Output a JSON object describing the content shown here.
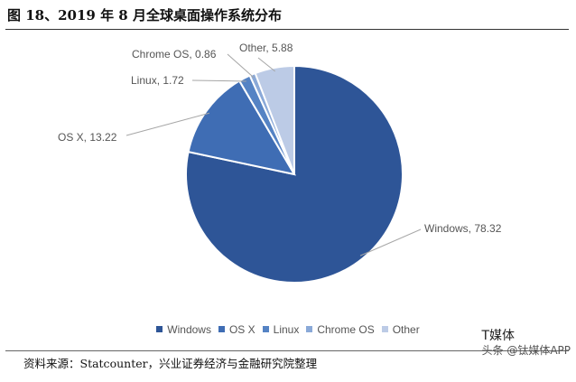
{
  "figure": {
    "title": "图 18、2019 年 8 月全球桌面操作系统分布",
    "source": "资料来源：Statcounter，兴业证券经济与金融研究院整理",
    "watermark_line1": "T媒体",
    "watermark_line2": "头条 @钛媒体APP"
  },
  "chart_data": {
    "type": "pie",
    "title": "图 18、2019 年 8 月全球桌面操作系统分布",
    "categories": [
      "Windows",
      "OS X",
      "Linux",
      "Chrome OS",
      "Other"
    ],
    "values": [
      78.32,
      13.22,
      1.72,
      0.86,
      5.88
    ],
    "labels": [
      "Windows, 78.32",
      "OS X, 13.22",
      "Linux, 1.72",
      "Chrome OS, 0.86",
      "Other, 5.88"
    ],
    "colors": [
      "#2e5597",
      "#3f6db4",
      "#5583c4",
      "#8aa9d8",
      "#bccbe6"
    ],
    "legend_position": "bottom",
    "start_angle": "12 o'clock",
    "direction": "clockwise"
  }
}
